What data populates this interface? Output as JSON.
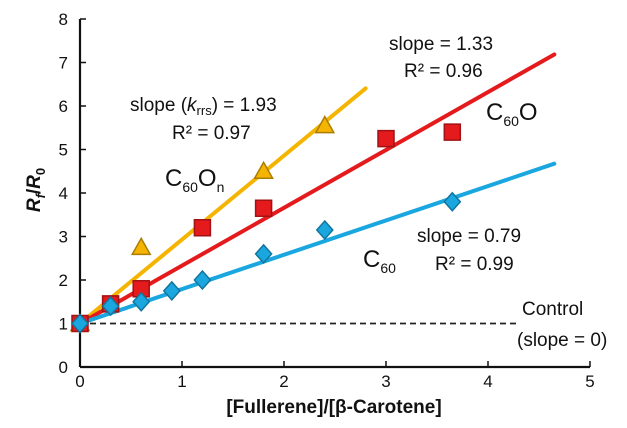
{
  "chart_data": {
    "type": "scatter",
    "xlabel": "[Fullerene]/[β-Carotene]",
    "ylabel": "Rf/R0",
    "xlim": [
      0,
      5
    ],
    "ylim": [
      0,
      8
    ],
    "xticks": [
      "0",
      "1",
      "2",
      "3",
      "4",
      "5"
    ],
    "yticks": [
      "0",
      "1",
      "2",
      "3",
      "4",
      "5",
      "6",
      "7",
      "8"
    ],
    "grid": false,
    "legend": "none",
    "series": [
      {
        "name": "C60On",
        "color": "#f4b400",
        "marker": "triangle",
        "points": [
          [
            0,
            1.0
          ],
          [
            0.6,
            2.75
          ],
          [
            1.8,
            4.5
          ],
          [
            2.4,
            5.55
          ]
        ],
        "fit": {
          "slope": 1.93,
          "intercept": 1.0,
          "x_end": 2.8
        }
      },
      {
        "name": "C60O",
        "color": "#e41a1c",
        "marker": "square",
        "points": [
          [
            0,
            1.0
          ],
          [
            0.3,
            1.45
          ],
          [
            0.6,
            1.8
          ],
          [
            1.2,
            3.2
          ],
          [
            1.8,
            3.65
          ],
          [
            3.0,
            5.25
          ],
          [
            3.65,
            5.4
          ]
        ],
        "fit": {
          "slope": 1.33,
          "intercept": 1.0,
          "x_end": 4.65
        }
      },
      {
        "name": "C60",
        "color": "#1aa7e0",
        "marker": "diamond",
        "points": [
          [
            0,
            1.0
          ],
          [
            0.3,
            1.4
          ],
          [
            0.6,
            1.5
          ],
          [
            0.9,
            1.75
          ],
          [
            1.2,
            2.0
          ],
          [
            1.8,
            2.6
          ],
          [
            2.4,
            3.15
          ],
          [
            3.65,
            3.8
          ]
        ],
        "fit": {
          "slope": 0.79,
          "intercept": 1.0,
          "x_end": 4.65
        }
      },
      {
        "name": "Control",
        "color": "#222222",
        "dashed": true,
        "line": {
          "y": 1.0,
          "x_start": 0,
          "x_end": 4.3
        }
      }
    ],
    "annotations": {
      "c60on_slope_prefix": "slope (",
      "c60on_slope_k": "k",
      "c60on_slope_k_sub": "rrs",
      "c60on_slope_suffix": ") = 1.93",
      "c60on_r2": "R² = 0.97",
      "c60o_slope": "slope = 1.33",
      "c60o_r2": "R² = 0.96",
      "c60_slope": "slope = 0.79",
      "c60_r2": "R² = 0.99",
      "control_line1": "Control",
      "control_line2": "(slope = 0)"
    },
    "series_labels": {
      "c60on_base": "C",
      "c60on_sub": "60",
      "c60on_o": "O",
      "c60on_sub2": "n",
      "c60o_base": "C",
      "c60o_sub": "60",
      "c60o_o": "O",
      "c60_base": "C",
      "c60_sub": "60"
    },
    "ylabel_parts": {
      "r1": "R",
      "s1": "f",
      "slash": "/",
      "r2": "R",
      "s2": "0"
    }
  }
}
